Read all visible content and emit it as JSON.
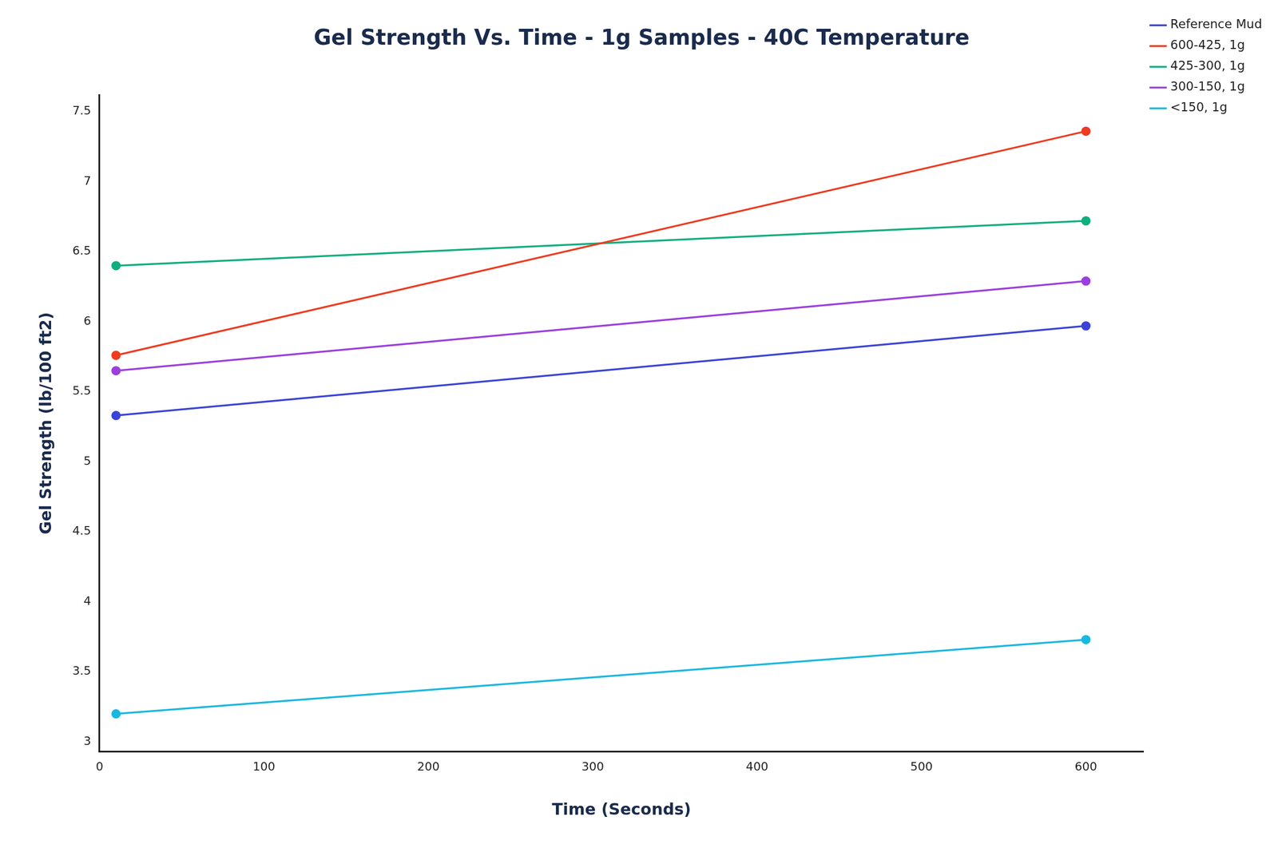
{
  "chart_data": {
    "type": "line",
    "title": "Gel Strength Vs. Time - 1g Samples - 40C Temperature",
    "x_label": "Time (Seconds)",
    "y_label": "Gel Strength (lb/100 ft2)",
    "x": [
      10,
      600
    ],
    "series": [
      {
        "name": "Reference Mud",
        "color": "#3b44d6",
        "values": [
          5.33,
          5.97
        ]
      },
      {
        "name": "600-425, 1g",
        "color": "#ef3b1f",
        "values": [
          5.76,
          7.36
        ]
      },
      {
        "name": "425-300, 1g",
        "color": "#0fae7f",
        "values": [
          6.4,
          6.72
        ]
      },
      {
        "name": "300-150, 1g",
        "color": "#9b3fe0",
        "values": [
          5.65,
          6.29
        ]
      },
      {
        "name": "<150, 1g",
        "color": "#19b8e0",
        "values": [
          3.2,
          3.73
        ]
      }
    ],
    "xlim": [
      0,
      635
    ],
    "ylim": [
      2.93,
      7.62
    ],
    "xticks": [
      0,
      100,
      200,
      300,
      400,
      500,
      600
    ],
    "yticks": [
      3,
      3.5,
      4,
      4.5,
      5,
      5.5,
      6,
      6.5,
      7,
      7.5
    ],
    "grid": false,
    "legend": "top right",
    "marker": "circle",
    "line_style": "solid"
  }
}
